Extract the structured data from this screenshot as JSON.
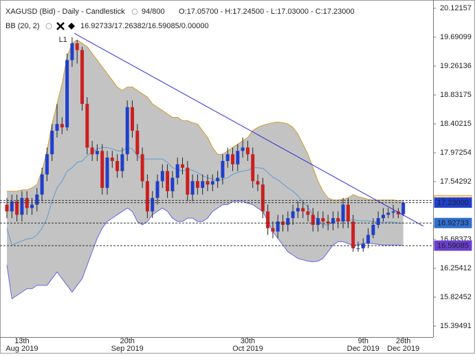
{
  "chart_data": {
    "type": "candlestick",
    "title": "XAGUSD (Bid) - Daily - Candlestick",
    "bar_count": "94/800",
    "ohlc_text": "O:17.05700 - H:17.24500 - L:17.03000 - C:17.23000",
    "indicator_name": "BB (20, 2)",
    "indicator_values": "16.92733/17.26382/16.59085/0.00000",
    "up_color": "#1f3fcc",
    "down_color": "#cc1f1f",
    "categories": [
      null,
      null,
      null,
      {
        "day": "13th",
        "month": "Aug 2019"
      },
      null,
      null,
      null,
      null,
      null,
      null,
      null,
      null,
      null,
      null,
      null,
      null,
      null,
      null,
      null,
      null,
      null,
      null,
      null,
      null,
      {
        "day": "20th",
        "month": "Sep 2019"
      },
      null,
      null,
      null,
      null,
      null,
      null,
      null,
      null,
      null,
      null,
      null,
      null,
      null,
      null,
      null,
      null,
      null,
      null,
      null,
      null,
      null,
      null,
      null,
      {
        "day": "30th",
        "month": "Oct 2019"
      },
      null,
      null,
      null,
      null,
      null,
      null,
      null,
      null,
      null,
      null,
      null,
      null,
      null,
      null,
      null,
      null,
      null,
      null,
      null,
      null,
      null,
      null,
      {
        "day": "9th",
        "month": "Dec 2019"
      },
      null,
      null,
      null,
      null,
      null,
      null,
      null,
      {
        "day": "26th",
        "month": "Dec 2019"
      }
    ],
    "open": [
      17.2,
      17.1,
      17.25,
      17.05,
      17.3,
      17.15,
      17.2,
      17.35,
      17.65,
      17.95,
      18.3,
      18.4,
      18.35,
      19.35,
      19.6,
      19.5,
      18.7,
      18.05,
      17.95,
      18.0,
      17.45,
      17.9,
      17.85,
      17.7,
      17.95,
      18.65,
      18.3,
      17.95,
      17.55,
      17.1,
      17.3,
      17.55,
      17.7,
      17.4,
      17.6,
      17.8,
      17.75,
      17.35,
      17.55,
      17.45,
      17.55,
      17.5,
      17.55,
      17.6,
      17.85,
      17.95,
      17.8,
      18.0,
      18.05,
      17.95,
      17.55,
      17.5,
      17.1,
      16.85,
      16.8,
      16.95,
      16.9,
      17.0,
      17.1,
      17.15,
      17.1,
      17.05,
      16.9,
      17.0,
      16.95,
      16.92,
      17.0,
      16.95,
      17.2,
      16.95,
      16.55,
      16.55,
      16.62,
      16.75,
      16.9,
      17.0,
      17.05,
      17.08,
      17.1,
      17.057
    ],
    "high": [
      17.3,
      17.35,
      17.35,
      17.4,
      17.4,
      17.3,
      17.45,
      17.75,
      18.05,
      18.4,
      18.7,
      18.5,
      19.45,
      19.69,
      19.65,
      19.55,
      18.8,
      18.15,
      18.1,
      18.1,
      18.0,
      18.0,
      17.95,
      18.05,
      18.75,
      18.75,
      18.4,
      18.05,
      17.65,
      17.4,
      17.65,
      17.8,
      17.8,
      17.7,
      17.9,
      17.9,
      17.85,
      17.65,
      17.65,
      17.65,
      17.65,
      17.65,
      17.7,
      17.95,
      18.05,
      18.05,
      18.1,
      18.2,
      18.15,
      18.05,
      17.65,
      17.6,
      17.2,
      16.95,
      17.05,
      17.05,
      17.1,
      17.2,
      17.25,
      17.25,
      17.2,
      17.15,
      17.1,
      17.1,
      17.05,
      17.1,
      17.1,
      17.3,
      17.3,
      17.05,
      16.65,
      16.7,
      16.85,
      17.0,
      17.1,
      17.15,
      17.15,
      17.2,
      17.15,
      17.245
    ],
    "low": [
      17.0,
      17.0,
      16.95,
      16.95,
      17.05,
      17.05,
      17.1,
      17.25,
      17.55,
      17.85,
      18.2,
      18.25,
      18.3,
      19.25,
      19.3,
      18.6,
      17.95,
      17.85,
      17.85,
      17.35,
      17.35,
      17.75,
      17.6,
      17.6,
      17.85,
      18.2,
      17.85,
      17.45,
      17.0,
      17.0,
      17.2,
      17.45,
      17.3,
      17.3,
      17.5,
      17.65,
      17.25,
      17.25,
      17.35,
      17.35,
      17.4,
      17.4,
      17.45,
      17.5,
      17.75,
      17.7,
      17.7,
      17.9,
      17.85,
      17.45,
      17.4,
      17.0,
      16.75,
      16.7,
      16.7,
      16.8,
      16.8,
      16.9,
      17.0,
      17.0,
      16.95,
      16.8,
      16.8,
      16.85,
      16.82,
      16.82,
      16.85,
      16.85,
      16.85,
      16.5,
      16.5,
      16.5,
      16.55,
      16.7,
      16.85,
      16.95,
      17.0,
      17.0,
      17.0,
      17.03
    ],
    "close": [
      17.1,
      17.25,
      17.05,
      17.3,
      17.15,
      17.2,
      17.35,
      17.65,
      17.95,
      18.3,
      18.4,
      18.35,
      19.35,
      19.6,
      19.5,
      18.7,
      18.05,
      17.95,
      18.0,
      17.45,
      17.9,
      17.85,
      17.7,
      17.95,
      18.65,
      18.3,
      17.95,
      17.55,
      17.1,
      17.3,
      17.55,
      17.7,
      17.4,
      17.6,
      17.8,
      17.75,
      17.35,
      17.55,
      17.45,
      17.55,
      17.5,
      17.55,
      17.6,
      17.85,
      17.95,
      17.8,
      18.0,
      18.05,
      17.95,
      17.55,
      17.5,
      17.1,
      16.85,
      16.8,
      16.95,
      16.9,
      17.0,
      17.1,
      17.15,
      17.1,
      17.05,
      16.9,
      17.0,
      16.95,
      16.92,
      17.0,
      16.95,
      17.2,
      16.95,
      16.55,
      16.55,
      16.62,
      16.75,
      16.9,
      17.0,
      17.05,
      17.08,
      17.1,
      17.057,
      17.23
    ],
    "band_fill": "#c3c3c3",
    "bb_upper": {
      "color": "#d49a2a",
      "values": [
        17.4,
        17.4,
        17.4,
        17.42,
        17.42,
        17.45,
        17.5,
        17.7,
        18.0,
        18.4,
        18.7,
        19.0,
        19.4,
        19.6,
        19.65,
        19.6,
        19.55,
        19.45,
        19.35,
        19.25,
        19.15,
        19.05,
        18.95,
        18.9,
        18.95,
        18.95,
        18.9,
        18.85,
        18.8,
        18.7,
        18.65,
        18.6,
        18.55,
        18.5,
        18.5,
        18.45,
        18.45,
        18.42,
        18.4,
        18.3,
        18.2,
        18.05,
        17.95,
        17.95,
        18.0,
        18.05,
        18.1,
        18.15,
        18.2,
        18.3,
        18.35,
        18.38,
        18.4,
        18.42,
        18.43,
        18.42,
        18.4,
        18.35,
        18.25,
        18.1,
        17.95,
        17.75,
        17.55,
        17.4,
        17.3,
        17.27,
        17.27,
        17.28,
        17.3,
        17.35,
        17.32,
        17.3,
        17.28,
        17.27,
        17.27,
        17.27,
        17.27,
        17.27,
        17.26,
        17.264
      ]
    },
    "bb_middle": {
      "color": "#5b9bd5",
      "values": [
        16.85,
        16.6,
        16.63,
        16.66,
        16.69,
        16.7,
        16.75,
        16.85,
        17.0,
        17.25,
        17.45,
        17.55,
        17.7,
        17.75,
        17.83,
        17.85,
        17.93,
        17.98,
        18.03,
        18.05,
        18.05,
        18.03,
        18.0,
        18.0,
        18.05,
        18.03,
        17.93,
        17.88,
        17.88,
        17.88,
        17.88,
        17.88,
        17.83,
        17.75,
        17.73,
        17.7,
        17.73,
        17.71,
        17.68,
        17.63,
        17.6,
        17.58,
        17.55,
        17.58,
        17.6,
        17.65,
        17.68,
        17.7,
        17.71,
        17.75,
        17.75,
        17.74,
        17.68,
        17.61,
        17.57,
        17.51,
        17.45,
        17.4,
        17.33,
        17.24,
        17.16,
        17.05,
        16.96,
        16.9,
        16.9,
        16.94,
        16.96,
        16.97,
        16.96,
        16.98,
        16.96,
        16.96,
        16.96,
        16.95,
        16.94,
        16.94,
        16.94,
        16.94,
        16.93,
        16.927
      ]
    },
    "bb_lower": {
      "color": "#6464e6",
      "values": [
        16.3,
        15.8,
        15.85,
        15.9,
        15.95,
        15.95,
        16.0,
        16.0,
        16.0,
        16.1,
        16.2,
        16.1,
        16.0,
        15.9,
        16.0,
        16.1,
        16.3,
        16.5,
        16.7,
        16.85,
        16.95,
        17.0,
        17.05,
        17.1,
        17.15,
        17.1,
        16.95,
        16.9,
        16.95,
        17.05,
        17.1,
        17.15,
        17.1,
        17.0,
        16.95,
        16.95,
        17.0,
        17.0,
        16.95,
        16.95,
        17.0,
        17.1,
        17.15,
        17.2,
        17.2,
        17.25,
        17.25,
        17.25,
        17.22,
        17.2,
        17.15,
        17.1,
        16.95,
        16.8,
        16.7,
        16.6,
        16.5,
        16.45,
        16.4,
        16.38,
        16.36,
        16.35,
        16.36,
        16.4,
        16.5,
        16.6,
        16.65,
        16.65,
        16.62,
        16.6,
        16.6,
        16.62,
        16.63,
        16.62,
        16.61,
        16.6,
        16.6,
        16.6,
        16.6,
        16.591
      ]
    },
    "trendline": {
      "label": "L1",
      "color": "#2a2ad0",
      "x": [
        13.4,
        83
      ],
      "values": [
        19.75,
        16.88
      ]
    },
    "price_lines": [
      {
        "value": 17.26382,
        "color": "#f6dfb8",
        "text_color": "#000000",
        "border": "#d49a2a"
      },
      {
        "value": 17.23,
        "label": "17.23000",
        "color": "#1f3fcc",
        "text_color": "#ffffff",
        "border": "#1f3fcc"
      },
      {
        "value": 16.92733,
        "color": "#2f6fd0",
        "text_color": "#ffffff",
        "border": "#2f6fd0"
      },
      {
        "value": 16.59085,
        "color": "#6a3fd0",
        "text_color": "#ffffff",
        "border": "#6a3fd0"
      }
    ],
    "ylim": [
      15.2311,
      20.2443
    ],
    "yticks": [
      20.12157,
      19.69099,
      19.26136,
      18.83175,
      18.40215,
      17.97254,
      17.54292,
      16.68373,
      16.25412,
      15.82452,
      15.39491
    ]
  }
}
